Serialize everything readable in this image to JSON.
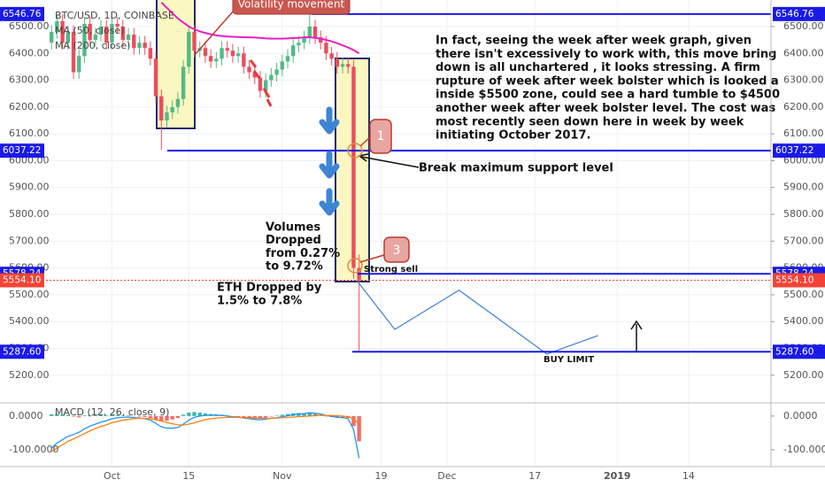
{
  "chart_data": [
    {
      "type": "candlestick",
      "title": "BTC/USD, 1D, COINBASE",
      "x": [
        -11,
        -10,
        -9,
        -8,
        -7,
        -6,
        -5,
        -4,
        -3,
        -2,
        -1,
        0,
        1,
        2,
        3,
        4,
        5,
        6,
        7,
        8,
        9,
        10,
        11,
        12,
        13,
        14,
        15,
        16,
        17,
        18,
        19,
        20,
        21,
        22,
        23,
        24,
        25,
        26,
        27,
        28,
        29,
        30,
        31,
        32,
        33,
        34,
        35,
        36,
        37,
        38,
        39,
        40,
        41,
        42,
        43,
        44,
        45
      ],
      "open": [
        6440,
        6480,
        6520,
        6440,
        6480,
        6330,
        6390,
        6510,
        6450,
        6470,
        6500,
        6440,
        6510,
        6500,
        6450,
        6470,
        6420,
        6440,
        6420,
        6380,
        6240,
        6150,
        6180,
        6200,
        6230,
        6350,
        6480,
        6410,
        6420,
        6390,
        6370,
        6380,
        6420,
        6410,
        6390,
        6400,
        6350,
        6330,
        6310,
        6260,
        6300,
        6320,
        6340,
        6370,
        6390,
        6430,
        6440,
        6460,
        6500,
        6460,
        6440,
        6400,
        6380,
        6350,
        6360,
        6350,
        5600
      ],
      "high": [
        6505,
        6545,
        6545,
        6505,
        6505,
        6415,
        6535,
        6535,
        6495,
        6525,
        6525,
        6535,
        6535,
        6525,
        6495,
        6495,
        6465,
        6465,
        6445,
        6405,
        6265,
        6205,
        6225,
        6255,
        6375,
        6505,
        6505,
        6445,
        6445,
        6415,
        6405,
        6445,
        6445,
        6435,
        6425,
        6425,
        6375,
        6355,
        6335,
        6325,
        6345,
        6365,
        6395,
        6415,
        6455,
        6465,
        6485,
        6546.76,
        6525,
        6485,
        6465,
        6425,
        6405,
        6385,
        6385,
        6375,
        5650
      ],
      "low": [
        6415,
        6455,
        6415,
        6415,
        6305,
        6305,
        6365,
        6425,
        6425,
        6445,
        6415,
        6415,
        6475,
        6425,
        6425,
        6395,
        6395,
        6395,
        6355,
        6215,
        6040,
        6125,
        6155,
        6175,
        6205,
        6325,
        6385,
        6385,
        6365,
        6345,
        6345,
        6355,
        6385,
        6365,
        6365,
        6325,
        6305,
        6285,
        6235,
        6235,
        6275,
        6295,
        6315,
        6345,
        6365,
        6405,
        6415,
        6435,
        6435,
        6415,
        6375,
        6355,
        6325,
        6325,
        6325,
        5560,
        5287.6
      ],
      "close": [
        6480,
        6520,
        6440,
        6480,
        6330,
        6390,
        6510,
        6450,
        6470,
        6500,
        6440,
        6510,
        6500,
        6450,
        6470,
        6420,
        6440,
        6420,
        6380,
        6240,
        6150,
        6180,
        6200,
        6230,
        6350,
        6480,
        6410,
        6420,
        6390,
        6370,
        6380,
        6420,
        6410,
        6390,
        6400,
        6350,
        6330,
        6310,
        6260,
        6300,
        6320,
        6340,
        6370,
        6390,
        6430,
        6440,
        6460,
        6500,
        6460,
        6440,
        6400,
        6380,
        6350,
        6360,
        6350,
        5600,
        5554.1
      ],
      "up_color": "#53b987",
      "down_color": "#eb4d5c",
      "series": [
        {
          "name": "MA (50, close)",
          "color": "#e91ec6",
          "values": [
            null,
            null,
            null,
            null,
            null,
            null,
            null,
            null,
            null,
            null,
            null,
            null,
            null,
            null,
            null,
            null,
            null,
            null,
            null,
            null,
            6590,
            6570,
            6550,
            6530,
            6515,
            6500,
            6490,
            6482,
            6476,
            6471,
            6467,
            6465,
            6463,
            6462,
            6461,
            6460,
            6460,
            6459,
            6458,
            6456,
            6455,
            6455,
            6455,
            6456,
            6457,
            6458,
            6460,
            6460,
            6458,
            6455,
            6450,
            6445,
            6438,
            6430,
            6422,
            6412,
            6400
          ]
        },
        {
          "name": "MA (200, close)",
          "color": "#3b82f6",
          "values": [
            null,
            null,
            null,
            null,
            null,
            null,
            null,
            null,
            null,
            null,
            null,
            null,
            null,
            null,
            null,
            null,
            null,
            null,
            null,
            null,
            null,
            null,
            null,
            null,
            null,
            null,
            null,
            null,
            null,
            null,
            null,
            null,
            null,
            null,
            null,
            null,
            null,
            null,
            null,
            null,
            null,
            null,
            null,
            null,
            null,
            null,
            null,
            null,
            null,
            null,
            null,
            null,
            null,
            null,
            null,
            null,
            null
          ]
        }
      ],
      "xlim": [
        -12,
        120
      ],
      "xticks": [
        {
          "value": 0,
          "label": "Oct"
        },
        {
          "value": 14,
          "label": "15"
        },
        {
          "value": 31,
          "label": "Nov"
        },
        {
          "value": 49,
          "label": "19"
        },
        {
          "value": 61,
          "label": "Dec"
        },
        {
          "value": 77,
          "label": "17"
        },
        {
          "value": 92,
          "label": "2019"
        },
        {
          "value": 105,
          "label": "14"
        }
      ],
      "ylim": [
        5097,
        6599
      ],
      "yticks": [
        {
          "value": 5200,
          "label": "5200.00"
        },
        {
          "value": 5300,
          "label": "5300.00"
        },
        {
          "value": 5400,
          "label": "5400.00"
        },
        {
          "value": 5500,
          "label": "5500.00"
        },
        {
          "value": 5600,
          "label": "5600.00"
        },
        {
          "value": 5700,
          "label": "5700.00"
        },
        {
          "value": 5800,
          "label": "5800.00"
        },
        {
          "value": 5900,
          "label": "5900.00"
        },
        {
          "value": 6000,
          "label": "6000.00"
        },
        {
          "value": 6100,
          "label": "6100.00"
        },
        {
          "value": 6200,
          "label": "6200.00"
        },
        {
          "value": 6300,
          "label": "6300.00"
        },
        {
          "value": 6400,
          "label": "6400.00"
        },
        {
          "value": 6500,
          "label": "6500.00"
        }
      ],
      "grid": true,
      "price_lines": [
        6546.76,
        6037.22,
        5578.24,
        {
          "value": 5287.6,
          "label": "5287.60"
        }
      ],
      "price_line_color": "#1a1ae6",
      "last_price": {
        "value": 5554.1,
        "label": "5554.10"
      },
      "last_price_color": "#f44336",
      "projection": {
        "x": [
          44.7,
          51.5,
          63.2,
          79.2,
          88.5
        ],
        "y": [
          5550,
          5371,
          5517,
          5279,
          5348
        ],
        "color": "#3d7fd6"
      }
    },
    {
      "type": "macd",
      "title": "MACD (12, 26, close, 9)",
      "x": [
        -11,
        -10,
        -9,
        -8,
        -7,
        -6,
        -5,
        -4,
        -3,
        -2,
        -1,
        0,
        1,
        2,
        3,
        4,
        5,
        6,
        7,
        8,
        9,
        10,
        11,
        12,
        13,
        14,
        15,
        16,
        17,
        18,
        19,
        20,
        21,
        22,
        23,
        24,
        25,
        26,
        27,
        28,
        29,
        30,
        31,
        32,
        33,
        34,
        35,
        36,
        37,
        38,
        39,
        40,
        41,
        42,
        43,
        44,
        45
      ],
      "histogram": [
        5,
        6,
        4,
        3,
        -2,
        -4,
        2,
        3,
        4,
        5,
        2,
        4,
        3,
        1,
        2,
        -1,
        -2,
        -3,
        -6,
        -12,
        -16,
        -14,
        -10,
        -6,
        4,
        10,
        12,
        10,
        8,
        6,
        5,
        4,
        2,
        -1,
        -2,
        -5,
        -7,
        -8,
        -8,
        -5,
        -2,
        1,
        4,
        6,
        8,
        9,
        8,
        10,
        6,
        3,
        -1,
        -3,
        -5,
        -4,
        -6,
        -30,
        -75
      ],
      "macd": [
        -95,
        -80,
        -70,
        -60,
        -55,
        -48,
        -38,
        -30,
        -24,
        -18,
        -14,
        -8,
        -5,
        -4,
        -3,
        -5,
        -6,
        -8,
        -12,
        -22,
        -32,
        -36,
        -36,
        -34,
        -24,
        -12,
        -4,
        0,
        2,
        3,
        3,
        2,
        0,
        -2,
        -3,
        -6,
        -8,
        -10,
        -11,
        -9,
        -7,
        -5,
        -2,
        1,
        4,
        6,
        7,
        10,
        8,
        6,
        2,
        -1,
        -4,
        -5,
        -8,
        -40,
        -125
      ],
      "signal": [
        -105,
        -95,
        -85,
        -75,
        -68,
        -60,
        -52,
        -44,
        -37,
        -31,
        -26,
        -20,
        -16,
        -12,
        -10,
        -8,
        -7,
        -7,
        -8,
        -11,
        -15,
        -19,
        -23,
        -26,
        -27,
        -24,
        -20,
        -15,
        -11,
        -8,
        -6,
        -5,
        -4,
        -4,
        -4,
        -5,
        -5,
        -6,
        -6,
        -7,
        -7,
        -6,
        -5,
        -4,
        -3,
        -2,
        -1,
        0,
        1,
        2,
        2,
        2,
        1,
        0,
        -2,
        -8,
        -25
      ],
      "macd_color": "#2196f3",
      "signal_color": "#ff7f0e",
      "up_color": "#26a69a",
      "down_color": "#ef5350",
      "xlim": [
        -12,
        120
      ],
      "ylim": [
        -150,
        39
      ],
      "yticks": [
        {
          "value": 0,
          "label": "0.0000"
        },
        {
          "value": -100,
          "label": "-100.0000"
        }
      ]
    }
  ],
  "annotations": {
    "volatility": "Volatility movement",
    "note": [
      "In fact, seeing the week after week graph, given",
      "there isn't excessively to work with, this move bring",
      "down is all unchartered , it looks stressing. A firm",
      "rupture of week after week bolster which is looked a",
      "inside $5500 zone, could see a hard tumble to $4500",
      "another week after week bolster level. The cost was",
      "most recently seen down here in week by week",
      "initiating October 2017."
    ],
    "break": "Break maximum support level",
    "volumes": [
      "Volumes",
      "Dropped",
      "from 0.27%",
      "to 9.72%"
    ],
    "eth": [
      "ETH Dropped by",
      "1.5% to 7.8%"
    ],
    "strong_sell": "Strong sell",
    "buy_limit": "BUY LIMIT",
    "marker_1": "1",
    "marker_3": "3"
  }
}
